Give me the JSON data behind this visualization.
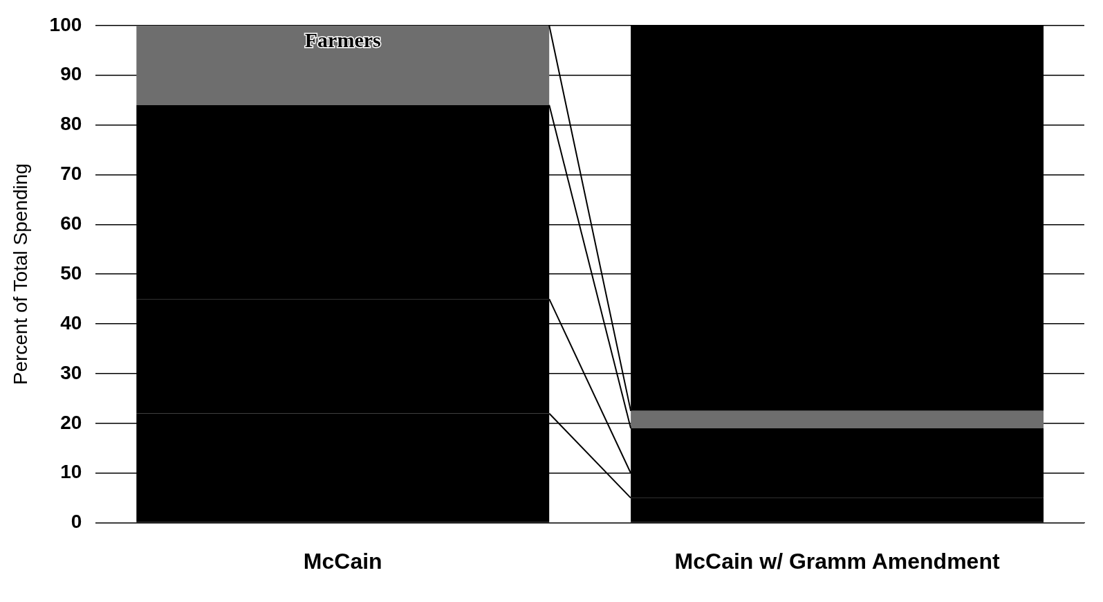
{
  "chart_data": {
    "type": "bar",
    "stacked": true,
    "ylabel": "Percent of Total Spending",
    "categories": [
      "McCain",
      "McCain w/ Gramm Amendment"
    ],
    "series": [
      {
        "color": "#000000",
        "values": [
          22,
          5
        ]
      },
      {
        "color": "#000000",
        "values": [
          23,
          5
        ]
      },
      {
        "color": "#000000",
        "values": [
          39,
          9
        ]
      },
      {
        "name": "Farmers",
        "color": "#6e6e6e",
        "values": [
          16,
          3.5
        ]
      },
      {
        "color": "#000000",
        "values": [
          0,
          77.5
        ]
      }
    ],
    "ylim": [
      0,
      100
    ],
    "yticks": [
      0,
      10,
      20,
      30,
      40,
      50,
      60,
      70,
      80,
      90,
      100
    ],
    "grid": "y",
    "legend": false
  }
}
